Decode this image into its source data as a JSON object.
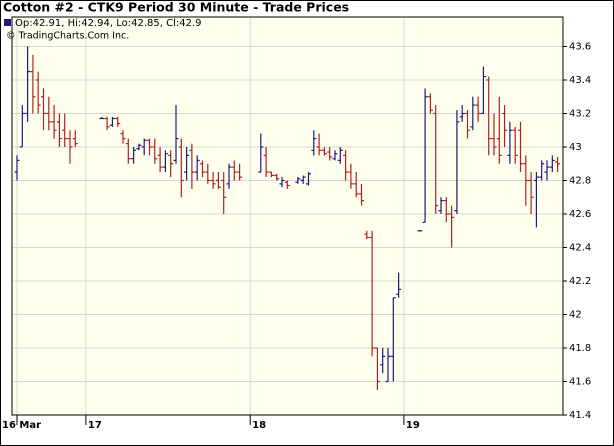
{
  "chart_data": {
    "type": "ohlc",
    "title": "Cotton #2 - CTK9 Period 30 Minute - Trade Prices",
    "legend_text": "Op:42.91, Hi:42.94, Lo:42.85, Cl:42.9",
    "credit": "© TradingCharts.Com Inc.",
    "up_color": "#1a1a80",
    "down_color": "#b02020",
    "background": "#ffffee",
    "grid": true,
    "ylim": [
      41.4,
      43.776
    ],
    "yticks": [
      41.4,
      41.6,
      41.8,
      42,
      42.2,
      42.4,
      42.6,
      42.8,
      43,
      43.2,
      43.4,
      43.6
    ],
    "categories": [
      "16 Mar",
      null,
      null,
      null,
      null,
      null,
      null,
      null,
      null,
      null,
      null,
      null,
      null,
      "17",
      null,
      null,
      null,
      null,
      null,
      null,
      null,
      null,
      null,
      null,
      null,
      null,
      null,
      null,
      null,
      null,
      null,
      null,
      null,
      null,
      null,
      null,
      null,
      null,
      null,
      null,
      null,
      null,
      null,
      null,
      "18",
      null,
      null,
      null,
      null,
      null,
      null,
      null,
      null,
      null,
      null,
      null,
      null,
      null,
      null,
      null,
      null,
      null,
      null,
      null,
      null,
      null,
      null,
      null,
      null,
      null,
      null,
      null,
      null,
      "19",
      null,
      null,
      null,
      null,
      null,
      null,
      null,
      null,
      null,
      null,
      null,
      null,
      null,
      null,
      null,
      null,
      null,
      null,
      null,
      null,
      null,
      null,
      null,
      null,
      null,
      null,
      null,
      null,
      null
    ],
    "open": [
      42.85,
      43.0,
      43.2,
      43.45,
      43.4,
      43.3,
      43.2,
      43.15,
      43.15,
      43.1,
      43.05,
      43.05,
      null,
      null,
      null,
      null,
      43.17,
      43.17,
      43.13,
      43.17,
      43.08,
      43.02,
      42.93,
      42.99,
      43.0,
      43.04,
      43.0,
      42.95,
      42.88,
      42.95,
      42.92,
      43.0,
      42.85,
      42.98,
      42.85,
      42.9,
      42.85,
      42.8,
      42.8,
      42.8,
      42.78,
      42.88,
      42.85,
      null,
      null,
      null,
      42.85,
      42.95,
      42.85,
      42.83,
      42.78,
      42.79,
      null,
      42.79,
      42.8,
      42.78,
      42.98,
      43.0,
      42.98,
      42.97,
      42.93,
      42.92,
      42.95,
      42.85,
      42.78,
      42.72,
      42.48,
      42.46,
      41.8,
      41.7,
      41.6,
      41.75,
      42.12,
      null,
      null,
      null,
      42.5,
      42.55,
      43.3,
      43.2,
      42.62,
      42.68,
      42.6,
      42.62,
      43.18,
      43.2,
      43.12,
      43.25,
      43.2,
      43.4,
      43.05,
      43.05,
      43.2,
      42.95,
      43.1,
      43.1,
      42.9,
      42.8,
      42.8,
      42.82,
      42.85,
      42.88,
      42.91
    ],
    "high": [
      42.95,
      43.25,
      43.6,
      43.55,
      43.45,
      43.35,
      43.3,
      43.25,
      43.2,
      43.2,
      43.1,
      43.1,
      null,
      null,
      null,
      null,
      43.18,
      43.18,
      43.18,
      43.18,
      43.1,
      43.05,
      43.0,
      43.02,
      43.05,
      43.05,
      43.05,
      43.0,
      42.98,
      42.98,
      43.25,
      43.05,
      43.0,
      43.02,
      42.95,
      42.92,
      42.9,
      42.85,
      42.85,
      42.85,
      42.9,
      42.92,
      42.9,
      null,
      null,
      null,
      43.08,
      43.0,
      42.85,
      42.84,
      42.82,
      42.8,
      null,
      42.82,
      42.83,
      42.85,
      43.1,
      43.08,
      43.0,
      43.0,
      42.98,
      43.0,
      42.98,
      42.9,
      42.85,
      42.78,
      42.5,
      42.5,
      41.8,
      41.8,
      41.8,
      42.1,
      42.25,
      null,
      null,
      null,
      42.5,
      43.35,
      43.32,
      43.25,
      42.7,
      42.7,
      42.65,
      43.22,
      43.25,
      43.22,
      43.3,
      43.3,
      43.48,
      43.42,
      43.2,
      43.3,
      43.25,
      43.15,
      43.12,
      43.15,
      42.95,
      42.85,
      42.85,
      42.92,
      42.92,
      42.95,
      42.94
    ],
    "low": [
      42.8,
      43.0,
      43.15,
      43.2,
      43.2,
      43.1,
      43.1,
      43.05,
      43.0,
      43.0,
      42.9,
      43.0,
      null,
      null,
      null,
      null,
      43.17,
      43.1,
      43.12,
      43.12,
      43.02,
      42.9,
      42.9,
      42.98,
      42.95,
      42.95,
      42.9,
      42.85,
      42.85,
      42.82,
      42.9,
      42.7,
      42.8,
      42.75,
      42.8,
      42.82,
      42.78,
      42.75,
      42.75,
      42.6,
      42.75,
      42.8,
      42.8,
      null,
      null,
      null,
      42.85,
      42.82,
      42.82,
      42.8,
      42.76,
      42.75,
      null,
      42.78,
      42.78,
      42.77,
      42.95,
      42.95,
      42.95,
      42.92,
      42.92,
      42.9,
      42.8,
      42.75,
      42.7,
      42.65,
      42.45,
      41.75,
      41.55,
      41.65,
      41.6,
      41.6,
      42.1,
      null,
      null,
      null,
      42.5,
      42.55,
      43.2,
      42.6,
      42.6,
      42.55,
      42.4,
      42.6,
      43.15,
      43.05,
      43.1,
      43.15,
      43.2,
      42.95,
      42.95,
      42.9,
      43.0,
      42.9,
      42.9,
      42.85,
      42.65,
      42.6,
      42.52,
      42.8,
      42.8,
      42.85,
      42.85
    ],
    "close": [
      42.92,
      43.2,
      43.45,
      43.3,
      43.25,
      43.2,
      43.15,
      43.1,
      43.05,
      43.05,
      43.0,
      43.02,
      null,
      null,
      null,
      null,
      43.17,
      43.12,
      43.17,
      43.14,
      43.05,
      42.93,
      42.98,
      43.01,
      43.04,
      43.0,
      42.93,
      42.88,
      42.96,
      42.9,
      43.05,
      42.8,
      42.95,
      42.85,
      42.92,
      42.85,
      42.8,
      42.78,
      42.76,
      42.7,
      42.88,
      42.85,
      42.82,
      null,
      null,
      null,
      43.0,
      42.85,
      42.83,
      42.81,
      42.8,
      42.77,
      null,
      42.81,
      42.82,
      42.84,
      43.05,
      42.98,
      42.96,
      42.94,
      42.96,
      42.98,
      42.85,
      42.78,
      42.72,
      42.68,
      42.46,
      41.8,
      41.6,
      41.75,
      41.75,
      42.1,
      42.15,
      null,
      null,
      null,
      42.5,
      43.3,
      43.22,
      42.65,
      42.68,
      42.6,
      42.58,
      43.15,
      43.2,
      43.1,
      43.25,
      43.2,
      43.42,
      43.05,
      43.0,
      42.95,
      43.1,
      43.1,
      42.95,
      42.9,
      42.8,
      42.7,
      42.82,
      42.9,
      42.88,
      42.92,
      42.9
    ]
  }
}
